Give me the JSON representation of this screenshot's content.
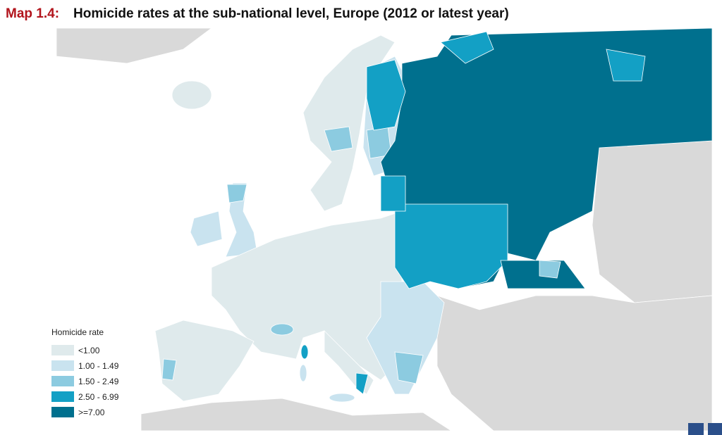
{
  "header": {
    "label": "Map 1.4:",
    "title": "Homicide rates at the sub-national level, Europe (2012 or latest year)"
  },
  "legend": {
    "title": "Homicide rate",
    "items": [
      {
        "label": "<1.00",
        "color": "#dfeaec"
      },
      {
        "label": "1.00 - 1.49",
        "color": "#c9e3ef"
      },
      {
        "label": "1.50 - 2.49",
        "color": "#8ccbe0"
      },
      {
        "label": "2.50 - 6.99",
        "color": "#13a0c5"
      },
      {
        "label": ">=7.00",
        "color": "#00708e"
      }
    ]
  }
}
